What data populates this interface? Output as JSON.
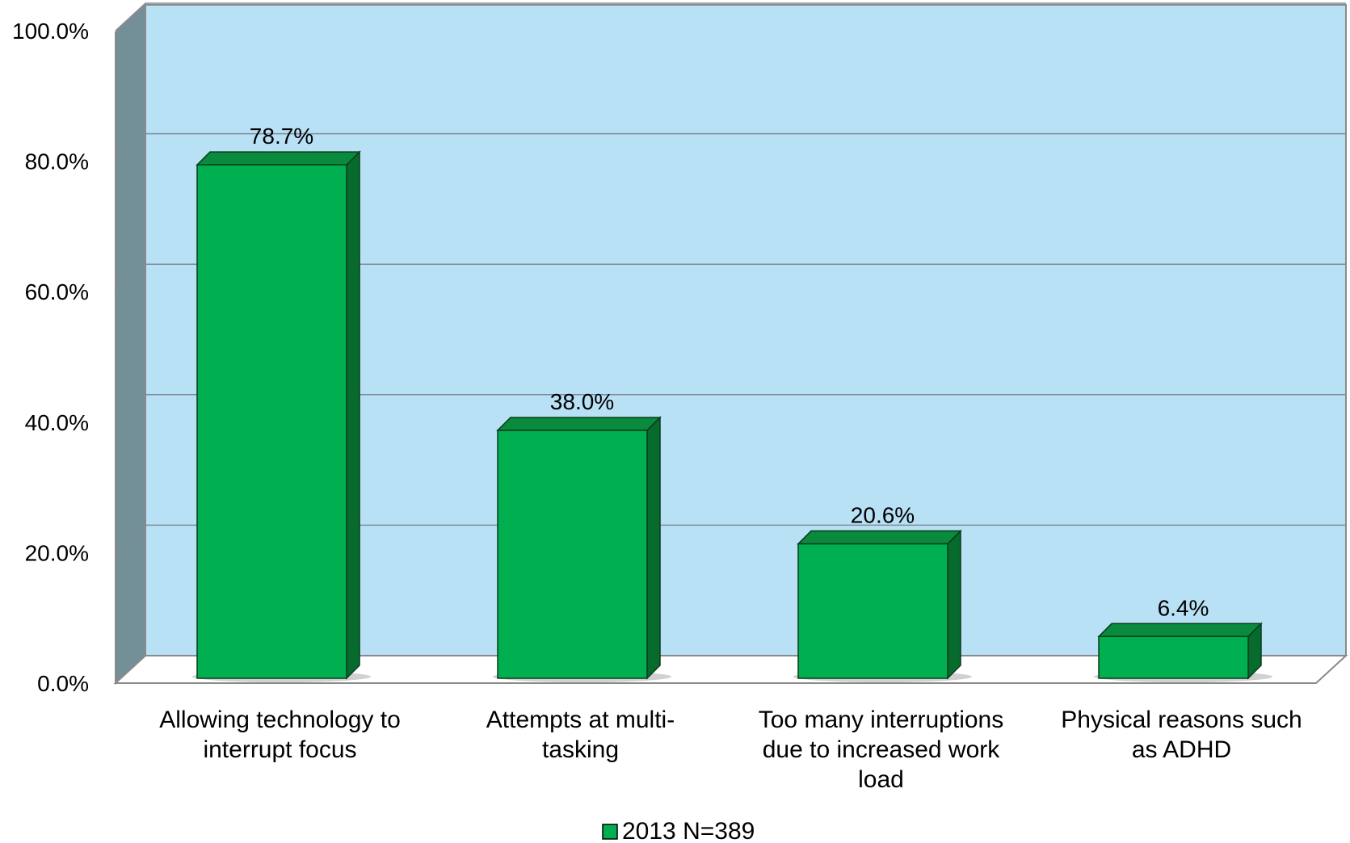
{
  "chart_data": {
    "type": "bar",
    "categories": [
      [
        "Allowing technology to",
        "interrupt focus"
      ],
      [
        "Attempts at multi-",
        "tasking"
      ],
      [
        "Too many interruptions",
        "due to increased work",
        "load"
      ],
      [
        "Physical reasons such",
        "as ADHD"
      ]
    ],
    "series": [
      {
        "name": "2013 N=389",
        "values": [
          78.7,
          38.0,
          20.6,
          6.4
        ],
        "color": "#00b050"
      }
    ],
    "data_labels": [
      "78.7%",
      "38.0%",
      "20.6%",
      "6.4%"
    ],
    "ylim": [
      0,
      100
    ],
    "y_ticks": [
      0,
      20,
      40,
      60,
      80,
      100
    ],
    "y_tick_labels": [
      "0.0%",
      "20.0%",
      "40.0%",
      "60.0%",
      "80.0%",
      "100.0%"
    ],
    "grid": true,
    "legend_position": "bottom",
    "colors": {
      "back_wall": "#b8e1f5",
      "side_wall": "#738f98",
      "floor": "#ffffff",
      "gridline": "#7f8c99",
      "bar_front": "#00b050",
      "bar_top": "#0a8a3c",
      "bar_side": "#066b2d"
    }
  }
}
